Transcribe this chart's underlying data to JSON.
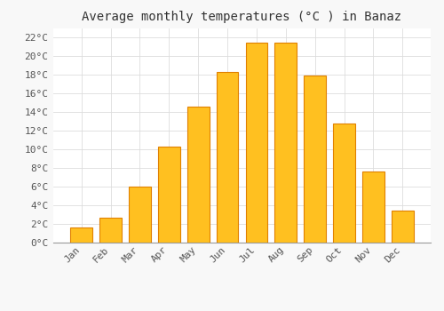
{
  "title": "Average monthly temperatures (°C ) in Banaz",
  "months": [
    "Jan",
    "Feb",
    "Mar",
    "Apr",
    "May",
    "Jun",
    "Jul",
    "Aug",
    "Sep",
    "Oct",
    "Nov",
    "Dec"
  ],
  "values": [
    1.6,
    2.7,
    6.0,
    10.3,
    14.6,
    18.3,
    21.4,
    21.4,
    17.9,
    12.8,
    7.6,
    3.4
  ],
  "bar_color_main": "#FFC020",
  "bar_color_edge": "#E08000",
  "bar_color_light": "#FFD060",
  "background_color": "#F8F8F8",
  "plot_bg_color": "#FFFFFF",
  "grid_color": "#DDDDDD",
  "ylim": [
    0,
    23
  ],
  "yticks": [
    0,
    2,
    4,
    6,
    8,
    10,
    12,
    14,
    16,
    18,
    20,
    22
  ],
  "title_fontsize": 10,
  "tick_fontsize": 8,
  "font_family": "monospace"
}
